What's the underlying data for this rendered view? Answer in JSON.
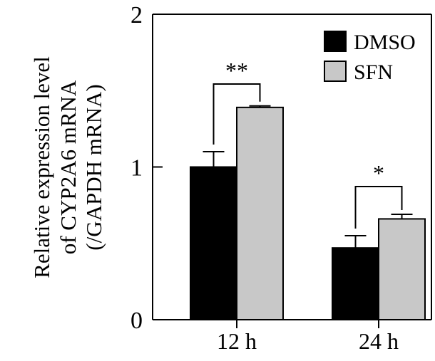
{
  "chart_data": {
    "type": "bar",
    "categories": [
      "12 h",
      "24 h"
    ],
    "series": [
      {
        "name": "DMSO",
        "values": [
          1.0,
          0.47
        ],
        "errors": [
          0.1,
          0.08
        ],
        "color": "#000000"
      },
      {
        "name": "SFN",
        "values": [
          1.39,
          0.66
        ],
        "errors": [
          0.01,
          0.03
        ],
        "color": "#c8c8c8"
      }
    ],
    "ylim": [
      0,
      2
    ],
    "yticks": [
      "0",
      "1",
      "2"
    ],
    "ylabel_lines": [
      "Relative expression level",
      "of CYP2A6 mRNA",
      "(/GAPDH mRNA)"
    ],
    "xlabel": "",
    "title": "",
    "significance": [
      "**",
      "*"
    ],
    "legend_position": "top-right",
    "grid": false
  }
}
